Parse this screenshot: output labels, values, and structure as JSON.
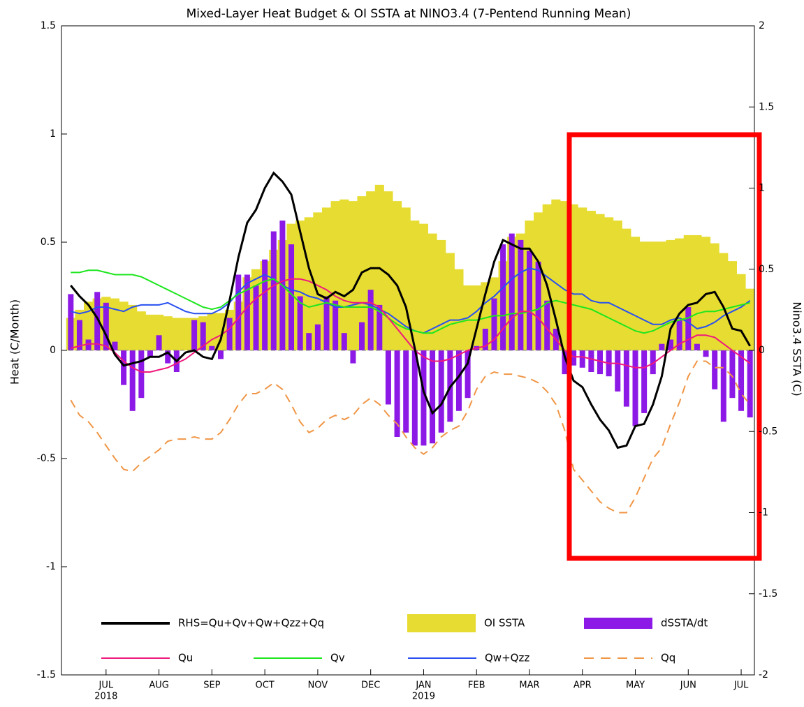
{
  "chart_data": {
    "type": "combo",
    "title": "Mixed-Layer Heat Budget & OI SSTA at NINO3.4 (7-Pentend Running Mean)",
    "y_label": "Heat (C/Month)",
    "y2_label": "Nino3.4 SSTA (C)",
    "ylim": [
      -1.5,
      1.5
    ],
    "yticks": [
      -1.5,
      -1,
      -0.5,
      0,
      0.5,
      1,
      1.5
    ],
    "y2lim": [
      -2,
      2
    ],
    "y2ticks": [
      -2,
      -1.5,
      -1,
      -0.5,
      0,
      0.5,
      1,
      1.5,
      2
    ],
    "zero_line": true,
    "categories": [
      null,
      null,
      null,
      null,
      "JUL",
      null,
      null,
      null,
      null,
      null,
      "AUG",
      null,
      null,
      null,
      null,
      null,
      "SEP",
      null,
      null,
      null,
      null,
      null,
      "OCT",
      null,
      null,
      null,
      null,
      null,
      "NOV",
      null,
      null,
      null,
      null,
      null,
      "DEC",
      null,
      null,
      null,
      null,
      null,
      "JAN",
      null,
      null,
      null,
      null,
      null,
      "FEB",
      null,
      null,
      null,
      null,
      null,
      "MAR",
      null,
      null,
      null,
      null,
      null,
      "APR",
      null,
      null,
      null,
      null,
      null,
      "MAY",
      null,
      null,
      null,
      null,
      null,
      "JUN",
      null,
      null,
      null,
      null,
      null,
      "JUL",
      null
    ],
    "category_years": [
      null,
      null,
      null,
      null,
      "2018",
      null,
      null,
      null,
      null,
      null,
      null,
      null,
      null,
      null,
      null,
      null,
      null,
      null,
      null,
      null,
      null,
      null,
      null,
      null,
      null,
      null,
      null,
      null,
      null,
      null,
      null,
      null,
      null,
      null,
      null,
      null,
      null,
      null,
      null,
      null,
      "2019",
      null,
      null,
      null,
      null,
      null,
      null,
      null,
      null,
      null,
      null,
      null,
      null,
      null,
      null,
      null,
      null,
      null,
      null,
      null,
      null,
      null,
      null,
      null,
      null,
      null,
      null,
      null,
      null,
      null,
      null,
      null,
      null,
      null,
      null,
      null,
      null,
      null
    ],
    "series": [
      {
        "name": "RHS=Qu+Qv+Qw+Qzz+Qq",
        "type": "line",
        "color": "#000000",
        "values": [
          0.3,
          0.25,
          0.21,
          0.15,
          0.07,
          -0.02,
          -0.07,
          -0.06,
          -0.05,
          -0.03,
          -0.03,
          -0.01,
          -0.05,
          -0.01,
          0,
          -0.03,
          -0.04,
          0.05,
          0.23,
          0.43,
          0.59,
          0.65,
          0.75,
          0.82,
          0.78,
          0.72,
          0.55,
          0.38,
          0.26,
          0.24,
          0.27,
          0.25,
          0.28,
          0.36,
          0.38,
          0.38,
          0.35,
          0.3,
          0.2,
          0.01,
          -0.19,
          -0.29,
          -0.25,
          -0.17,
          -0.12,
          -0.06,
          0.1,
          0.26,
          0.41,
          0.51,
          0.49,
          0.47,
          0.47,
          0.41,
          0.3,
          0.14,
          -0.03,
          -0.14,
          -0.17,
          -0.25,
          -0.32,
          -0.37,
          -0.45,
          -0.44,
          -0.35,
          -0.34,
          -0.25,
          -0.12,
          0.1,
          0.17,
          0.21,
          0.22,
          0.26,
          0.27,
          0.2,
          0.1,
          0.09,
          0.02
        ]
      },
      {
        "name": "OI SSTA",
        "type": "bar",
        "axis": "y2",
        "color": "#e6dc32",
        "values": [
          0.2,
          0.25,
          0.3,
          0.32,
          0.33,
          0.32,
          0.3,
          0.28,
          0.24,
          0.22,
          0.22,
          0.21,
          0.2,
          0.2,
          0.2,
          0.21,
          0.23,
          0.23,
          0.25,
          0.3,
          0.45,
          0.5,
          0.55,
          0.62,
          0.68,
          0.78,
          0.8,
          0.82,
          0.85,
          0.88,
          0.92,
          0.93,
          0.92,
          0.95,
          0.98,
          1.02,
          0.98,
          0.92,
          0.88,
          0.8,
          0.78,
          0.72,
          0.68,
          0.6,
          0.5,
          0.4,
          0.4,
          0.42,
          0.45,
          0.55,
          0.7,
          0.72,
          0.8,
          0.85,
          0.9,
          0.93,
          0.92,
          0.9,
          0.88,
          0.86,
          0.84,
          0.82,
          0.8,
          0.75,
          0.7,
          0.67,
          0.67,
          0.67,
          0.68,
          0.69,
          0.71,
          0.71,
          0.7,
          0.66,
          0.6,
          0.55,
          0.47,
          0.38
        ]
      },
      {
        "name": "dSSTA/dt",
        "type": "bar",
        "color": "#8c19e6",
        "values": [
          0.26,
          0.14,
          0.05,
          0.27,
          0.22,
          0.04,
          -0.16,
          -0.28,
          -0.22,
          -0.03,
          0.07,
          -0.06,
          -0.1,
          0,
          0.14,
          0.13,
          0.02,
          -0.04,
          0.15,
          0.35,
          0.35,
          0.3,
          0.42,
          0.55,
          0.6,
          0.49,
          0.25,
          0.08,
          0.12,
          0.25,
          0.23,
          0.08,
          -0.06,
          0.13,
          0.28,
          0.21,
          -0.25,
          -0.4,
          -0.38,
          -0.44,
          -0.44,
          -0.43,
          -0.38,
          -0.33,
          -0.28,
          -0.22,
          0.02,
          0.1,
          0.24,
          0.49,
          0.54,
          0.51,
          0.46,
          0.41,
          0.23,
          0.1,
          -0.11,
          -0.07,
          -0.08,
          -0.1,
          -0.11,
          -0.12,
          -0.19,
          -0.26,
          -0.35,
          -0.29,
          -0.11,
          0.03,
          0.05,
          0.14,
          0.2,
          0.03,
          -0.03,
          -0.18,
          -0.33,
          -0.22,
          -0.28,
          -0.31
        ]
      },
      {
        "name": "Qu",
        "type": "line",
        "color": "#f0197d",
        "values": [
          0.01,
          0.02,
          0.03,
          0.03,
          0.02,
          -0.01,
          -0.05,
          -0.08,
          -0.1,
          -0.1,
          -0.09,
          -0.08,
          -0.06,
          -0.04,
          -0.01,
          0.02,
          0.05,
          0.07,
          0.1,
          0.15,
          0.2,
          0.24,
          0.27,
          0.3,
          0.32,
          0.33,
          0.33,
          0.32,
          0.3,
          0.28,
          0.25,
          0.23,
          0.22,
          0.22,
          0.22,
          0.2,
          0.15,
          0.1,
          0.05,
          0,
          -0.03,
          -0.05,
          -0.05,
          -0.04,
          -0.02,
          0,
          0.01,
          0.02,
          0.05,
          0.1,
          0.15,
          0.18,
          0.18,
          0.15,
          0.1,
          0.05,
          0,
          -0.03,
          -0.03,
          -0.04,
          -0.05,
          -0.06,
          -0.06,
          -0.07,
          -0.08,
          -0.08,
          -0.06,
          -0.03,
          0,
          0.03,
          0.05,
          0.07,
          0.07,
          0.06,
          0.03,
          0,
          -0.03,
          -0.06
        ]
      },
      {
        "name": "Qv",
        "type": "line",
        "color": "#1ee61e",
        "values": [
          0.36,
          0.36,
          0.37,
          0.37,
          0.36,
          0.35,
          0.35,
          0.35,
          0.34,
          0.32,
          0.3,
          0.28,
          0.26,
          0.24,
          0.22,
          0.2,
          0.19,
          0.2,
          0.23,
          0.26,
          0.28,
          0.3,
          0.32,
          0.33,
          0.3,
          0.26,
          0.22,
          0.2,
          0.21,
          0.22,
          0.21,
          0.2,
          0.2,
          0.2,
          0.2,
          0.18,
          0.15,
          0.12,
          0.1,
          0.09,
          0.08,
          0.08,
          0.1,
          0.12,
          0.13,
          0.14,
          0.14,
          0.15,
          0.16,
          0.16,
          0.17,
          0.17,
          0.18,
          0.19,
          0.22,
          0.23,
          0.22,
          0.21,
          0.2,
          0.19,
          0.17,
          0.15,
          0.13,
          0.11,
          0.09,
          0.08,
          0.09,
          0.11,
          0.13,
          0.14,
          0.15,
          0.17,
          0.18,
          0.18,
          0.19,
          0.2,
          0.21,
          0.22
        ]
      },
      {
        "name": "Qw+Qzz",
        "type": "line",
        "color": "#2850f0",
        "values": [
          0.18,
          0.17,
          0.18,
          0.2,
          0.2,
          0.19,
          0.18,
          0.2,
          0.21,
          0.21,
          0.21,
          0.22,
          0.2,
          0.18,
          0.17,
          0.17,
          0.17,
          0.19,
          0.22,
          0.27,
          0.31,
          0.33,
          0.35,
          0.33,
          0.3,
          0.28,
          0.27,
          0.25,
          0.24,
          0.22,
          0.2,
          0.2,
          0.21,
          0.22,
          0.21,
          0.19,
          0.17,
          0.14,
          0.11,
          0.09,
          0.08,
          0.1,
          0.12,
          0.14,
          0.14,
          0.15,
          0.18,
          0.22,
          0.25,
          0.29,
          0.33,
          0.36,
          0.38,
          0.37,
          0.34,
          0.31,
          0.28,
          0.26,
          0.26,
          0.23,
          0.22,
          0.22,
          0.2,
          0.18,
          0.16,
          0.14,
          0.12,
          0.12,
          0.14,
          0.15,
          0.13,
          0.1,
          0.11,
          0.13,
          0.16,
          0.18,
          0.2,
          0.23
        ]
      },
      {
        "name": "Qq",
        "type": "line",
        "dash": true,
        "color": "#f09646",
        "values": [
          -0.23,
          -0.3,
          -0.33,
          -0.38,
          -0.44,
          -0.5,
          -0.55,
          -0.56,
          -0.52,
          -0.49,
          -0.46,
          -0.42,
          -0.41,
          -0.41,
          -0.4,
          -0.41,
          -0.41,
          -0.38,
          -0.32,
          -0.25,
          -0.2,
          -0.2,
          -0.18,
          -0.15,
          -0.18,
          -0.25,
          -0.33,
          -0.38,
          -0.36,
          -0.32,
          -0.3,
          -0.32,
          -0.3,
          -0.25,
          -0.22,
          -0.25,
          -0.3,
          -0.34,
          -0.4,
          -0.45,
          -0.48,
          -0.45,
          -0.4,
          -0.37,
          -0.35,
          -0.28,
          -0.18,
          -0.12,
          -0.1,
          -0.11,
          -0.11,
          -0.12,
          -0.13,
          -0.15,
          -0.19,
          -0.25,
          -0.37,
          -0.55,
          -0.6,
          -0.65,
          -0.7,
          -0.73,
          -0.75,
          -0.75,
          -0.68,
          -0.59,
          -0.5,
          -0.45,
          -0.34,
          -0.24,
          -0.12,
          -0.05,
          -0.05,
          -0.08,
          -0.08,
          -0.12,
          -0.2,
          -0.25
        ]
      }
    ]
  }
}
